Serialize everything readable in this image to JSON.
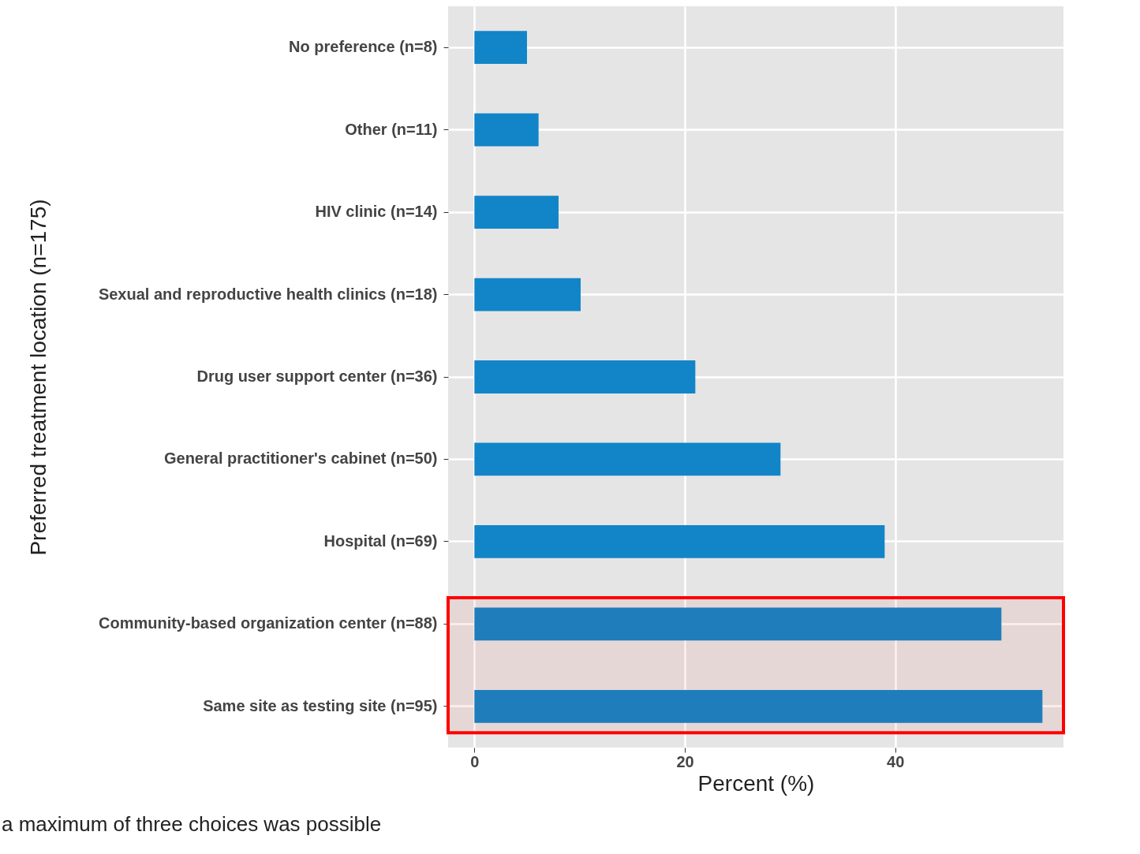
{
  "chart_data": {
    "type": "bar",
    "orientation": "horizontal",
    "ylabel": "Preferred treatment location (n=175)",
    "xlabel": "Percent (%)",
    "categories": [
      "No preference (n=8)",
      "Other (n=11)",
      "HIV clinic (n=14)",
      "Sexual and reproductive health clinics (n=18)",
      "Drug user support center (n=36)",
      "General practitioner's cabinet (n=50)",
      "Hospital (n=69)",
      "Community-based organization center (n=88)",
      "Same site as testing site (n=95)"
    ],
    "values": [
      5.0,
      6.1,
      8.0,
      10.1,
      21.0,
      29.1,
      39.0,
      50.1,
      54.0
    ],
    "color": "#1185c8",
    "xlim": [
      -2.5,
      56
    ],
    "xticks": [
      0,
      20,
      40
    ],
    "grid": true,
    "bands": [
      {
        "axis": "y",
        "from": "Community-based organization center (n=88)",
        "to": "Same site as testing site (n=95)",
        "color": "#ff0000"
      }
    ],
    "annotations": [
      "a maximum of three choices was possible"
    ]
  }
}
